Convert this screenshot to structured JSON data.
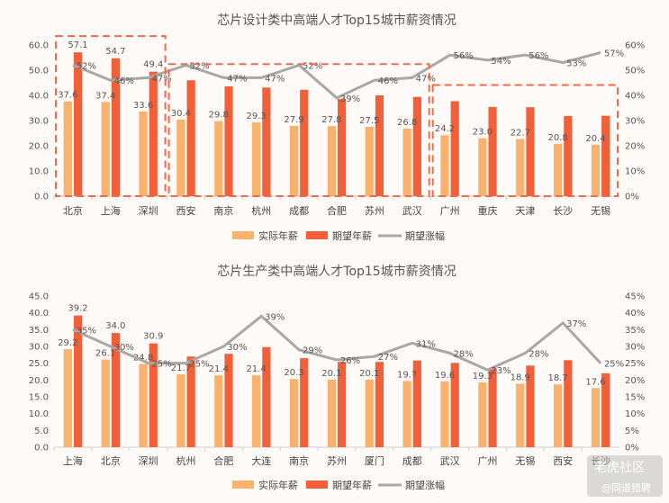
{
  "chart_data": [
    {
      "type": "bar",
      "title": "芯片设计类中高端人才Top15城市薪资情况",
      "categories": [
        "北京",
        "上海",
        "深圳",
        "西安",
        "南京",
        "杭州",
        "成都",
        "合肥",
        "苏州",
        "武汉",
        "广州",
        "重庆",
        "天津",
        "长沙",
        "无锡"
      ],
      "series": [
        {
          "name": "实际年薪",
          "type": "bar",
          "axis": "left",
          "color": "#f9b26c",
          "values": [
            37.6,
            37.4,
            33.6,
            30.4,
            29.8,
            29.3,
            27.9,
            27.8,
            27.5,
            26.8,
            24.2,
            23.0,
            22.7,
            20.8,
            20.4
          ]
        },
        {
          "name": "期望年薪",
          "type": "bar",
          "axis": "left",
          "color": "#f2603a",
          "values": [
            57.1,
            54.7,
            49.4,
            46.0,
            43.6,
            43.1,
            42.2,
            38.6,
            40.0,
            39.4,
            37.7,
            35.4,
            35.3,
            31.8,
            31.9
          ]
        },
        {
          "name": "期望涨幅",
          "type": "line",
          "axis": "right",
          "color": "#a8a8a8",
          "values": [
            52,
            46,
            47,
            52,
            47,
            47,
            52,
            39,
            46,
            47,
            56,
            54,
            56,
            53,
            57
          ]
        }
      ],
      "y_left": {
        "min": 0,
        "max": 60,
        "ticks": [
          "0.0",
          "10.0",
          "20.0",
          "30.0",
          "40.0",
          "50.0",
          "60.0"
        ]
      },
      "y_right": {
        "min": 0,
        "max": 60,
        "ticks": [
          "0%",
          "10%",
          "20%",
          "30%",
          "40%",
          "50%",
          "60%"
        ]
      },
      "bar_labels": [
        "57.1",
        "54.7",
        "49.4"
      ],
      "line_labels": [
        "52%",
        "46%",
        "47%",
        "52%",
        "47%",
        "47%",
        "52%",
        "39%",
        "46%",
        "47%",
        "56%",
        "54%",
        "56%",
        "53%",
        "57%"
      ],
      "legend": [
        "实际年薪",
        "期望年薪",
        "期望涨幅"
      ],
      "groups_highlighted": [
        "北京-深圳",
        "西安-武汉",
        "广州-无锡"
      ]
    },
    {
      "type": "bar",
      "title": "芯片生产类中高端人才Top15城市薪资情况",
      "categories": [
        "上海",
        "北京",
        "深圳",
        "杭州",
        "合肥",
        "大连",
        "南京",
        "苏州",
        "厦门",
        "成都",
        "武汉",
        "广州",
        "无锡",
        "西安",
        "长沙"
      ],
      "series": [
        {
          "name": "实际年薪",
          "type": "bar",
          "axis": "left",
          "color": "#f9b26c",
          "values": [
            29.2,
            26.1,
            24.8,
            21.7,
            21.4,
            21.4,
            20.3,
            20.1,
            20.1,
            19.7,
            19.6,
            19.3,
            18.9,
            18.7,
            17.6
          ]
        },
        {
          "name": "期望年薪",
          "type": "bar",
          "axis": "left",
          "color": "#f2603a",
          "values": [
            39.2,
            34.0,
            30.9,
            27.0,
            27.8,
            29.8,
            26.5,
            25.4,
            25.4,
            25.8,
            25.1,
            23.5,
            24.3,
            25.9,
            22.0
          ]
        },
        {
          "name": "期望涨幅",
          "type": "line",
          "axis": "right",
          "color": "#a8a8a8",
          "values": [
            35,
            30,
            25,
            25,
            30,
            39,
            29,
            26,
            27,
            31,
            28,
            23,
            28,
            37,
            25
          ]
        }
      ],
      "y_left": {
        "min": 0,
        "max": 45,
        "ticks": [
          "0.0",
          "5.0",
          "10.0",
          "15.0",
          "20.0",
          "25.0",
          "30.0",
          "35.0",
          "40.0",
          "45.0"
        ]
      },
      "y_right": {
        "min": 0,
        "max": 45,
        "ticks": [
          "0%",
          "5%",
          "10%",
          "15%",
          "20%",
          "25%",
          "30%",
          "35%",
          "40%",
          "45%"
        ]
      },
      "bar_labels": [
        "39.2",
        "34.0",
        "30.9"
      ],
      "line_labels": [
        "35%",
        "30%",
        "25%",
        "25%",
        "30%",
        "39%",
        "29%",
        "26%",
        "27%",
        "31%",
        "28%",
        "23%",
        "28%",
        "37%",
        "25%"
      ],
      "legend": [
        "实际年薪",
        "期望年薪",
        "期望涨幅"
      ]
    }
  ],
  "watermark": {
    "line1": "老虎社区",
    "line2": "@同道猎聘"
  }
}
